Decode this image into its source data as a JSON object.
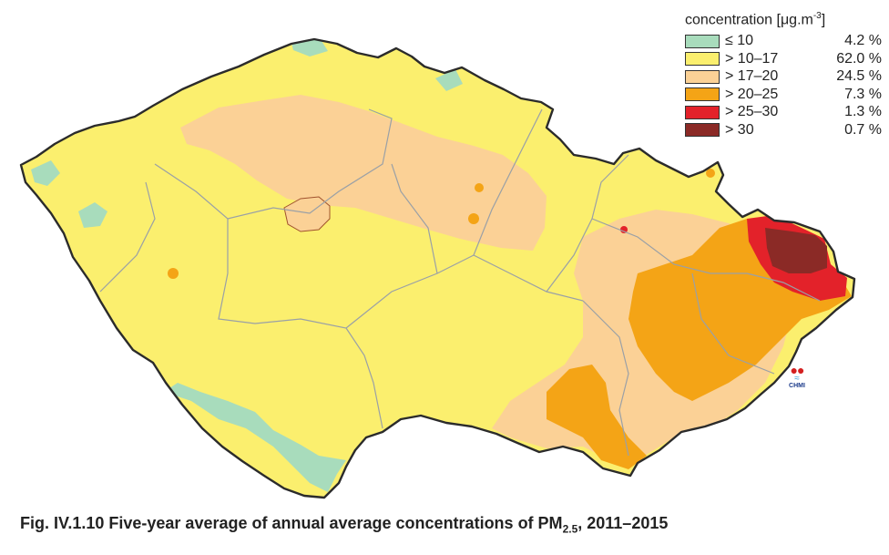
{
  "caption": {
    "prefix": "Fig. IV.1.10  Five-year average of annual average concentrations of PM",
    "subscript": "2.5",
    "suffix": ", 2011–2015"
  },
  "legend": {
    "title": "concentration [μg.m",
    "title_sup": "-3",
    "title_end": "]",
    "items": [
      {
        "range": "≤ 10",
        "share": "4.2 %",
        "color": "#a8dcbc"
      },
      {
        "range": "> 10–17",
        "share": "62.0 %",
        "color": "#fbef6e"
      },
      {
        "range": "> 17–20",
        "share": "24.5 %",
        "color": "#fbd196"
      },
      {
        "range": "> 20–25",
        "share": "7.3 %",
        "color": "#f4a416"
      },
      {
        "range": "> 25–30",
        "share": "1.3 %",
        "color": "#e3222a"
      },
      {
        "range": "> 30",
        "share": "0.7 %",
        "color": "#8b2a26"
      }
    ]
  },
  "logo": {
    "name": "CHMI"
  },
  "map": {
    "border_color": "#2b2b2b",
    "region_line_color": "#9aa0a6"
  }
}
